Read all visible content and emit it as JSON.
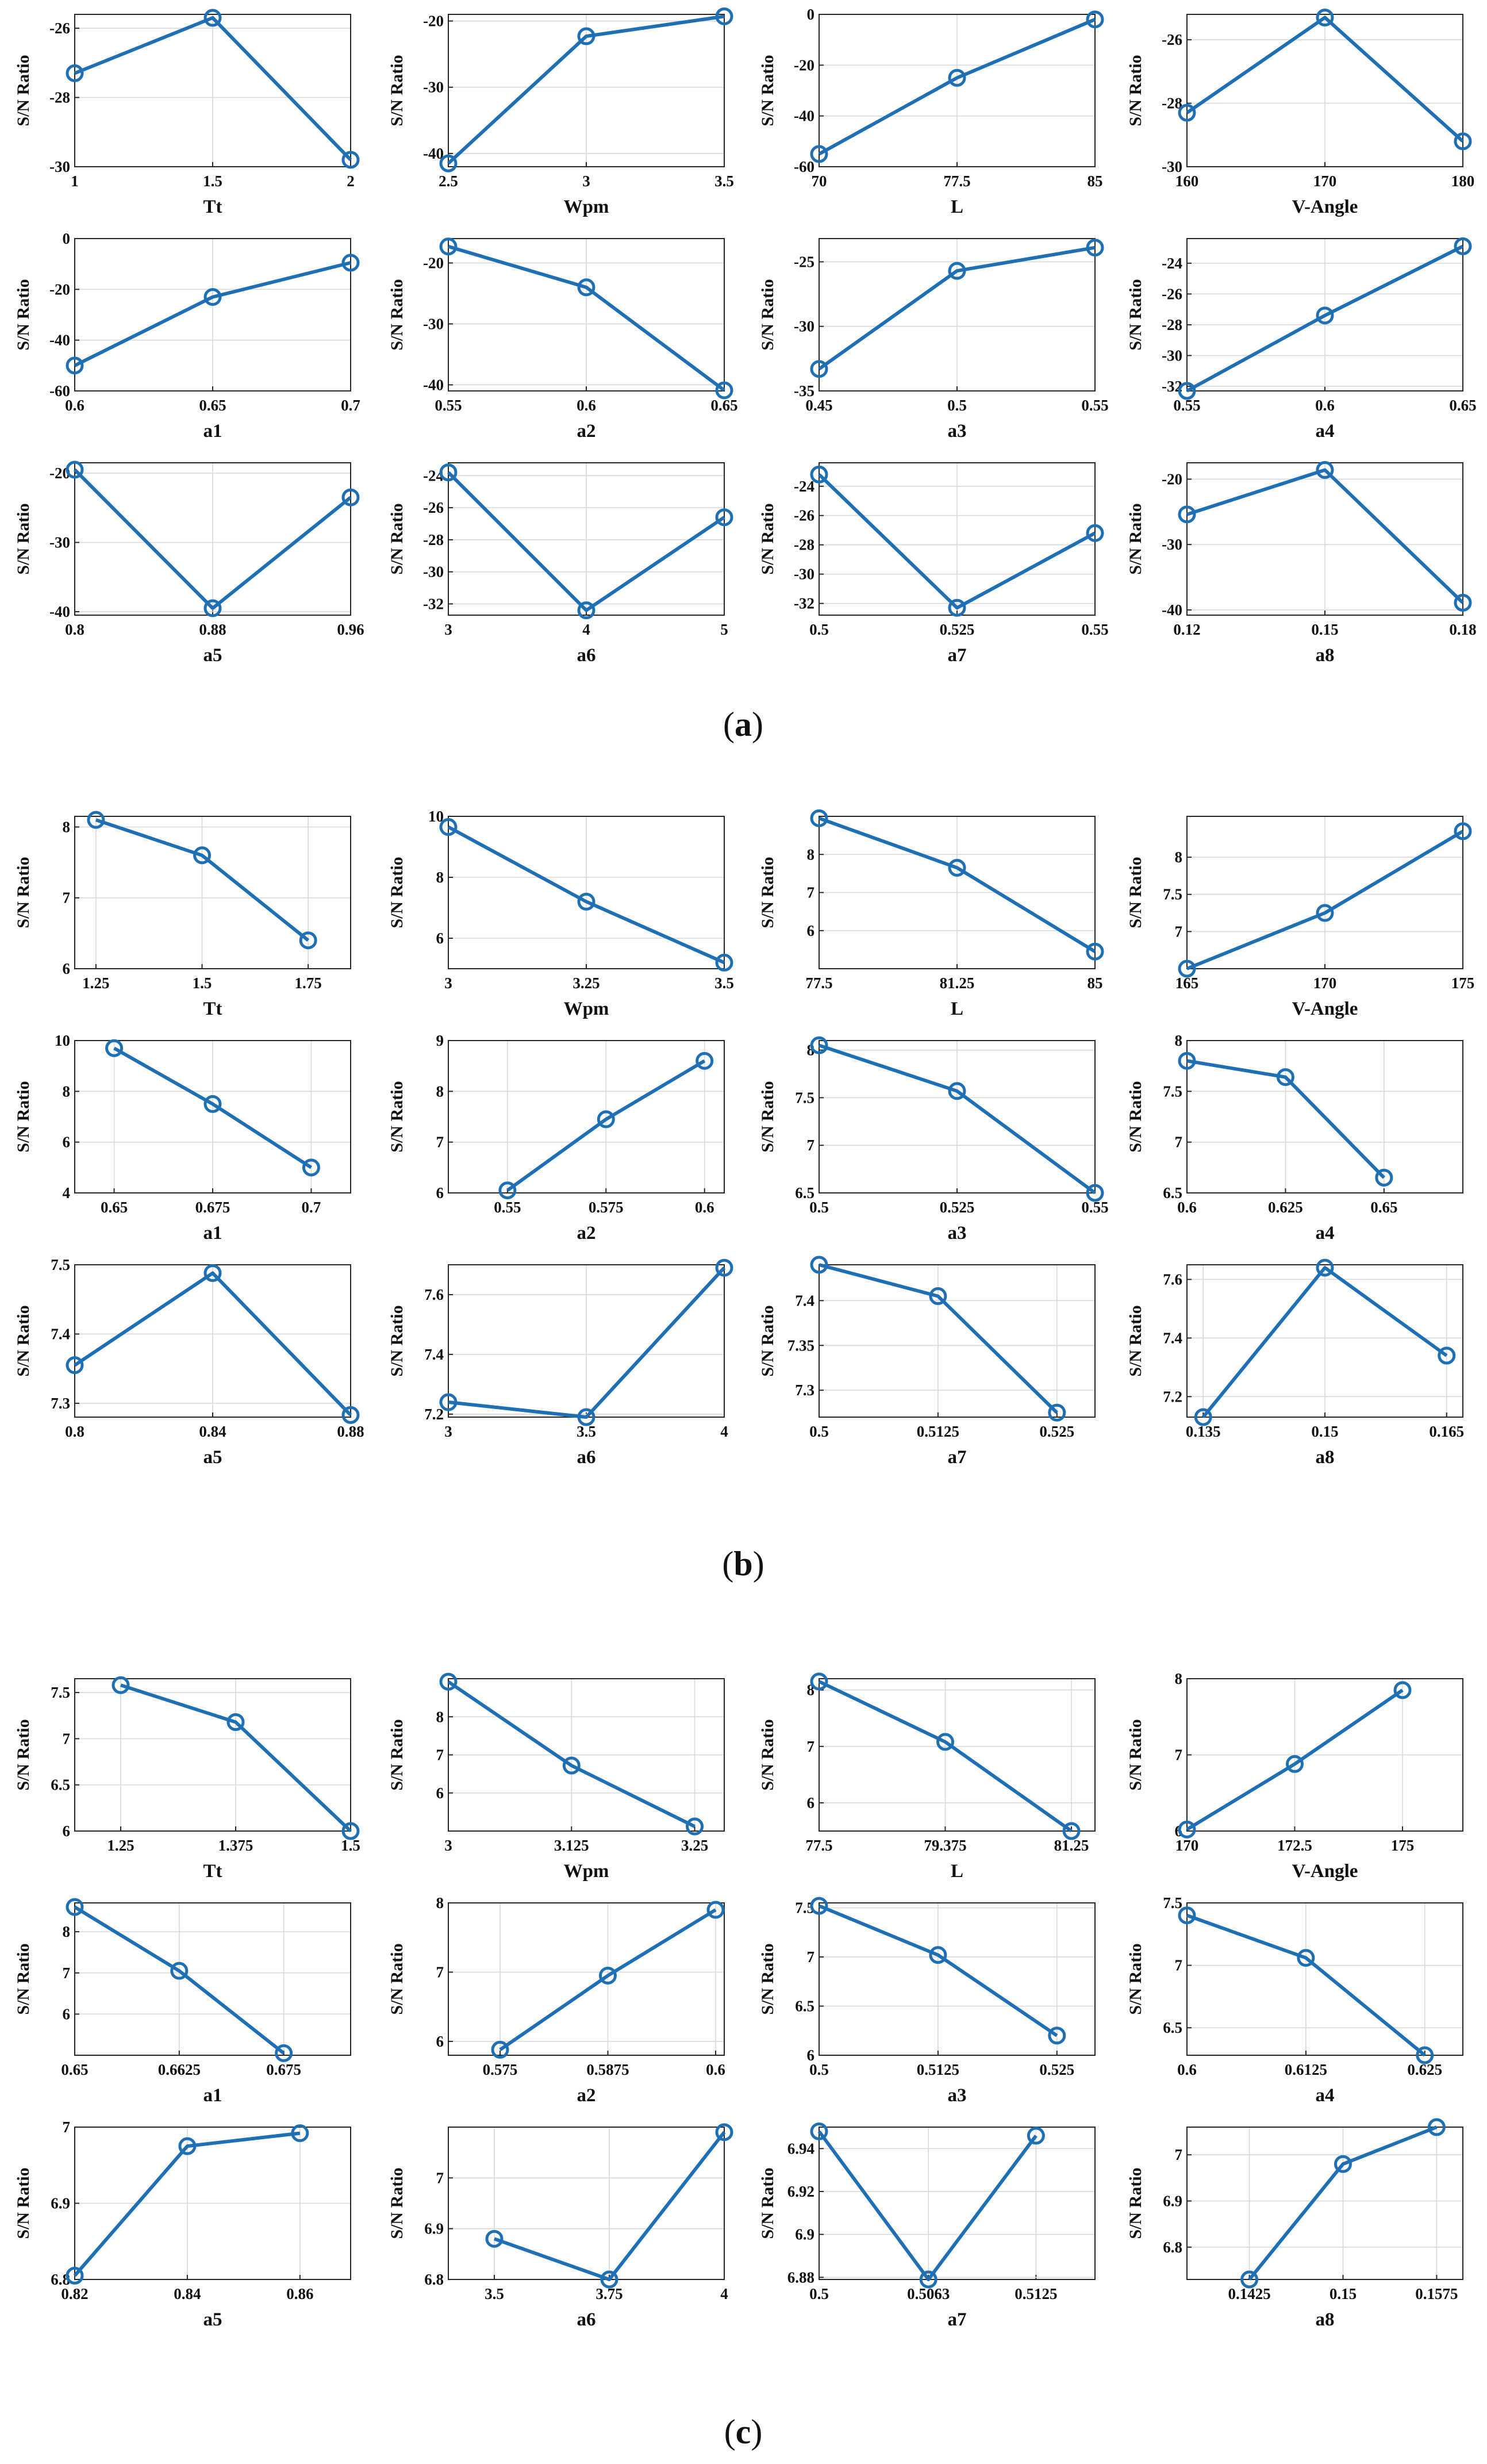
{
  "y_axis_label": "S/N Ratio",
  "colors": {
    "series": "#1f6fb4",
    "grid": "#d9d9d9",
    "axis": "#262626"
  },
  "captions": [
    {
      "open": "(",
      "letter": "a",
      "close": ")"
    },
    {
      "open": "(",
      "letter": "b",
      "close": ")"
    },
    {
      "open": "(",
      "letter": "c",
      "close": ")"
    }
  ],
  "chart_data": [
    {
      "type": "line",
      "xlabel": "Tt",
      "ylabel": "S/N Ratio",
      "x": [
        1,
        1.5,
        2
      ],
      "xticks": [
        "1",
        "1.5",
        "2"
      ],
      "values": [
        -27.3,
        -25.7,
        -29.8
      ],
      "ylim": [
        -30,
        -25.6
      ],
      "yticks": [
        -26,
        -28,
        -30
      ]
    },
    {
      "type": "line",
      "xlabel": "Wpm",
      "ylabel": "S/N Ratio",
      "x": [
        2.5,
        3,
        3.5
      ],
      "xticks": [
        "2.5",
        "3",
        "3.5"
      ],
      "values": [
        -41.5,
        -22.3,
        -19.3
      ],
      "ylim": [
        -42,
        -19
      ],
      "yticks": [
        -20,
        -30,
        -40
      ]
    },
    {
      "type": "line",
      "xlabel": "L",
      "ylabel": "S/N Ratio",
      "x": [
        70,
        77.5,
        85
      ],
      "xticks": [
        "70",
        "77.5",
        "85"
      ],
      "values": [
        -55,
        -25,
        -2
      ],
      "ylim": [
        -60,
        0
      ],
      "yticks": [
        0,
        -20,
        -40,
        -60
      ]
    },
    {
      "type": "line",
      "xlabel": "V-Angle",
      "ylabel": "S/N Ratio",
      "x": [
        160,
        170,
        180
      ],
      "xticks": [
        "160",
        "170",
        "180"
      ],
      "values": [
        -28.3,
        -25.3,
        -29.2
      ],
      "ylim": [
        -30,
        -25.2
      ],
      "yticks": [
        -26,
        -28,
        -30
      ]
    },
    {
      "type": "line",
      "xlabel": "a1",
      "ylabel": "S/N Ratio",
      "x": [
        0.6,
        0.65,
        0.7
      ],
      "xticks": [
        "0.6",
        "0.65",
        "0.7"
      ],
      "values": [
        -50,
        -23,
        -9.5
      ],
      "ylim": [
        -60,
        0
      ],
      "yticks": [
        0,
        -20,
        -40,
        -60
      ]
    },
    {
      "type": "line",
      "xlabel": "a2",
      "ylabel": "S/N Ratio",
      "x": [
        0.55,
        0.6,
        0.65
      ],
      "xticks": [
        "0.55",
        "0.6",
        "0.65"
      ],
      "values": [
        -17.3,
        -24,
        -40.9
      ],
      "ylim": [
        -41,
        -16
      ],
      "yticks": [
        -20,
        -30,
        -40
      ]
    },
    {
      "type": "line",
      "xlabel": "a3",
      "ylabel": "S/N Ratio",
      "x": [
        0.45,
        0.5,
        0.55
      ],
      "xticks": [
        "0.45",
        "0.5",
        "0.55"
      ],
      "values": [
        -33.3,
        -25.7,
        -23.9
      ],
      "ylim": [
        -35,
        -23.2
      ],
      "yticks": [
        -25,
        -30,
        -35
      ]
    },
    {
      "type": "line",
      "xlabel": "a4",
      "ylabel": "S/N Ratio",
      "x": [
        0.55,
        0.6,
        0.65
      ],
      "xticks": [
        "0.55",
        "0.6",
        "0.65"
      ],
      "values": [
        -32.3,
        -27.4,
        -22.9
      ],
      "ylim": [
        -32.3,
        -22.4
      ],
      "yticks": [
        -24,
        -26,
        -28,
        -30,
        -32
      ]
    },
    {
      "type": "line",
      "xlabel": "a5",
      "ylabel": "S/N Ratio",
      "x": [
        0.8,
        0.88,
        0.96
      ],
      "xticks": [
        "0.8",
        "0.88",
        "0.96"
      ],
      "values": [
        -19.5,
        -39.5,
        -23.5
      ],
      "ylim": [
        -40.5,
        -18.5
      ],
      "yticks": [
        -20,
        -30,
        -40
      ]
    },
    {
      "type": "line",
      "xlabel": "a6",
      "ylabel": "S/N Ratio",
      "x": [
        3,
        4,
        5
      ],
      "xticks": [
        "3",
        "4",
        "5"
      ],
      "values": [
        -23.8,
        -32.4,
        -26.6
      ],
      "ylim": [
        -32.7,
        -23.2
      ],
      "yticks": [
        -24,
        -26,
        -28,
        -30,
        -32
      ]
    },
    {
      "type": "line",
      "xlabel": "a7",
      "ylabel": "S/N Ratio",
      "x": [
        0.5,
        0.525,
        0.55
      ],
      "xticks": [
        "0.5",
        "0.525",
        "0.55"
      ],
      "values": [
        -23.2,
        -32.3,
        -27.2
      ],
      "ylim": [
        -32.8,
        -22.4
      ],
      "yticks": [
        -24,
        -26,
        -28,
        -30,
        -32
      ]
    },
    {
      "type": "line",
      "xlabel": "a8",
      "ylabel": "S/N Ratio",
      "x": [
        0.12,
        0.15,
        0.18
      ],
      "xticks": [
        "0.12",
        "0.15",
        "0.18"
      ],
      "values": [
        -25.4,
        -18.6,
        -38.9
      ],
      "ylim": [
        -40.8,
        -17.5
      ],
      "yticks": [
        -20,
        -30,
        -40
      ]
    },
    {
      "type": "line",
      "xlabel": "Tt",
      "ylabel": "S/N Ratio",
      "x": [
        1.25,
        1.5,
        1.75
      ],
      "xticks": [
        "1.25",
        "1.5",
        "1.75"
      ],
      "values": [
        8.1,
        7.6,
        6.4
      ],
      "xlim": [
        1.2,
        1.85
      ],
      "ylim": [
        6,
        8.15
      ],
      "yticks": [
        6,
        7,
        8
      ]
    },
    {
      "type": "line",
      "xlabel": "Wpm",
      "ylabel": "S/N Ratio",
      "x": [
        3,
        3.25,
        3.5
      ],
      "xticks": [
        "3",
        "3.25",
        "3.5"
      ],
      "values": [
        9.65,
        7.2,
        5.2
      ],
      "ylim": [
        5,
        10
      ],
      "yticks": [
        6,
        8,
        10
      ]
    },
    {
      "type": "line",
      "xlabel": "L",
      "ylabel": "S/N Ratio",
      "x": [
        77.5,
        81.25,
        85
      ],
      "xticks": [
        "77.5",
        "81.25",
        "85"
      ],
      "values": [
        8.95,
        7.65,
        5.45
      ],
      "ylim": [
        5,
        9
      ],
      "yticks": [
        6,
        7,
        8
      ]
    },
    {
      "type": "line",
      "xlabel": "V-Angle",
      "ylabel": "S/N Ratio",
      "x": [
        165,
        170,
        175
      ],
      "xticks": [
        "165",
        "170",
        "175"
      ],
      "values": [
        6.5,
        7.25,
        8.35
      ],
      "ylim": [
        6.5,
        8.55
      ],
      "yticks": [
        7,
        7.5,
        8
      ]
    },
    {
      "type": "line",
      "xlabel": "a1",
      "ylabel": "S/N Ratio",
      "x": [
        0.65,
        0.675,
        0.7
      ],
      "xticks": [
        "0.65",
        "0.675",
        "0.7"
      ],
      "values": [
        9.7,
        7.5,
        5
      ],
      "xlim": [
        0.64,
        0.71
      ],
      "ylim": [
        4,
        10
      ],
      "yticks": [
        4,
        6,
        8,
        10
      ]
    },
    {
      "type": "line",
      "xlabel": "a2",
      "ylabel": "S/N Ratio",
      "x": [
        0.55,
        0.575,
        0.6
      ],
      "xticks": [
        "0.55",
        "0.575",
        "0.6"
      ],
      "values": [
        6.05,
        7.45,
        8.6
      ],
      "xlim": [
        0.535,
        0.605
      ],
      "ylim": [
        6,
        9
      ],
      "yticks": [
        6,
        7,
        8,
        9
      ]
    },
    {
      "type": "line",
      "xlabel": "a3",
      "ylabel": "S/N Ratio",
      "x": [
        0.5,
        0.525,
        0.55
      ],
      "xticks": [
        "0.5",
        "0.525",
        "0.55"
      ],
      "values": [
        8.05,
        7.57,
        6.5
      ],
      "ylim": [
        6.5,
        8.1
      ],
      "yticks": [
        6.5,
        7,
        7.5,
        8
      ]
    },
    {
      "type": "line",
      "xlabel": "a4",
      "ylabel": "S/N Ratio",
      "x": [
        0.6,
        0.625,
        0.65
      ],
      "xticks": [
        "0.6",
        "0.625",
        "0.65"
      ],
      "values": [
        7.8,
        7.64,
        6.65
      ],
      "xlim": [
        0.6,
        0.67
      ],
      "ylim": [
        6.5,
        8
      ],
      "yticks": [
        6.5,
        7,
        7.5,
        8
      ]
    },
    {
      "type": "line",
      "xlabel": "a5",
      "ylabel": "S/N Ratio",
      "x": [
        0.8,
        0.84,
        0.88
      ],
      "xticks": [
        "0.8",
        "0.84",
        "0.88"
      ],
      "values": [
        7.355,
        7.488,
        7.283
      ],
      "ylim": [
        7.28,
        7.5
      ],
      "yticks": [
        7.3,
        7.4,
        7.5
      ]
    },
    {
      "type": "line",
      "xlabel": "a6",
      "ylabel": "S/N Ratio",
      "x": [
        3,
        3.5,
        4
      ],
      "xticks": [
        "3",
        "3.5",
        "4"
      ],
      "values": [
        7.24,
        7.19,
        7.69
      ],
      "ylim": [
        7.19,
        7.7
      ],
      "yticks": [
        7.2,
        7.4,
        7.6
      ]
    },
    {
      "type": "line",
      "xlabel": "a7",
      "ylabel": "S/N Ratio",
      "x": [
        0.5,
        0.5125,
        0.525
      ],
      "xticks": [
        "0.5",
        "0.5125",
        "0.525"
      ],
      "values": [
        7.44,
        7.405,
        7.275
      ],
      "xlim": [
        0.5,
        0.529
      ],
      "ylim": [
        7.27,
        7.44
      ],
      "yticks": [
        7.3,
        7.35,
        7.4
      ]
    },
    {
      "type": "line",
      "xlabel": "a8",
      "ylabel": "S/N Ratio",
      "x": [
        0.135,
        0.15,
        0.165
      ],
      "xticks": [
        "0.135",
        "0.15",
        "0.165"
      ],
      "values": [
        7.13,
        7.64,
        7.34
      ],
      "xlim": [
        0.133,
        0.167
      ],
      "ylim": [
        7.13,
        7.65
      ],
      "yticks": [
        7.2,
        7.4,
        7.6
      ]
    },
    {
      "type": "line",
      "xlabel": "Tt",
      "ylabel": "S/N Ratio",
      "x": [
        1.25,
        1.375,
        1.5
      ],
      "xticks": [
        "1.25",
        "1.375",
        "1.5"
      ],
      "values": [
        7.58,
        7.18,
        6
      ],
      "xlim": [
        1.2,
        1.5
      ],
      "ylim": [
        6,
        7.65
      ],
      "yticks": [
        6,
        6.5,
        7,
        7.5
      ]
    },
    {
      "type": "line",
      "xlabel": "Wpm",
      "ylabel": "S/N Ratio",
      "x": [
        3,
        3.125,
        3.25
      ],
      "xticks": [
        "3",
        "3.125",
        "3.25"
      ],
      "values": [
        8.92,
        6.72,
        5.12
      ],
      "xlim": [
        3,
        3.28
      ],
      "ylim": [
        5,
        9
      ],
      "yticks": [
        6,
        7,
        8
      ]
    },
    {
      "type": "line",
      "xlabel": "L",
      "ylabel": "S/N Ratio",
      "x": [
        77.5,
        79.375,
        81.25
      ],
      "xticks": [
        "77.5",
        "79.375",
        "81.25"
      ],
      "values": [
        8.15,
        7.08,
        5.5
      ],
      "xlim": [
        77.5,
        81.6
      ],
      "ylim": [
        5.5,
        8.2
      ],
      "yticks": [
        6,
        7,
        8
      ]
    },
    {
      "type": "line",
      "xlabel": "V-Angle",
      "ylabel": "S/N Ratio",
      "x": [
        170,
        172.5,
        175
      ],
      "xticks": [
        "170",
        "172.5",
        "175"
      ],
      "values": [
        6.02,
        6.88,
        7.85
      ],
      "xlim": [
        170,
        176.4
      ],
      "ylim": [
        6,
        8
      ],
      "yticks": [
        6,
        7,
        8
      ]
    },
    {
      "type": "line",
      "xlabel": "a1",
      "ylabel": "S/N Ratio",
      "x": [
        0.65,
        0.6625,
        0.675
      ],
      "xticks": [
        "0.65",
        "0.6625",
        "0.675"
      ],
      "values": [
        8.6,
        7.05,
        5.05
      ],
      "xlim": [
        0.65,
        0.683
      ],
      "ylim": [
        5,
        8.7
      ],
      "yticks": [
        6,
        7,
        8
      ]
    },
    {
      "type": "line",
      "xlabel": "a2",
      "ylabel": "S/N Ratio",
      "x": [
        0.575,
        0.5875,
        0.6
      ],
      "xticks": [
        "0.575",
        "0.5875",
        "0.6"
      ],
      "values": [
        5.88,
        6.95,
        7.9
      ],
      "xlim": [
        0.569,
        0.601
      ],
      "ylim": [
        5.8,
        8
      ],
      "yticks": [
        6,
        7,
        8
      ]
    },
    {
      "type": "line",
      "xlabel": "a3",
      "ylabel": "S/N Ratio",
      "x": [
        0.5,
        0.5125,
        0.525
      ],
      "xticks": [
        "0.5",
        "0.5125",
        "0.525"
      ],
      "values": [
        7.52,
        7.02,
        6.2
      ],
      "xlim": [
        0.5,
        0.529
      ],
      "ylim": [
        6,
        7.55
      ],
      "yticks": [
        6,
        6.5,
        7,
        7.5
      ]
    },
    {
      "type": "line",
      "xlabel": "a4",
      "ylabel": "S/N Ratio",
      "x": [
        0.6,
        0.6125,
        0.625
      ],
      "xticks": [
        "0.6",
        "0.6125",
        "0.625"
      ],
      "values": [
        7.4,
        7.06,
        6.28
      ],
      "xlim": [
        0.6,
        0.629
      ],
      "ylim": [
        6.28,
        7.5
      ],
      "yticks": [
        6.5,
        7,
        7.5
      ]
    },
    {
      "type": "line",
      "xlabel": "a5",
      "ylabel": "S/N Ratio",
      "x": [
        0.82,
        0.84,
        0.86
      ],
      "xticks": [
        "0.82",
        "0.84",
        "0.86"
      ],
      "values": [
        6.805,
        6.975,
        6.992
      ],
      "xlim": [
        0.82,
        0.869
      ],
      "ylim": [
        6.8,
        7
      ],
      "yticks": [
        6.8,
        6.9,
        7
      ]
    },
    {
      "type": "line",
      "xlabel": "a6",
      "ylabel": "S/N Ratio",
      "x": [
        3.5,
        3.75,
        4
      ],
      "xticks": [
        "3.5",
        "3.75",
        "4"
      ],
      "values": [
        6.88,
        6.8,
        7.09
      ],
      "xlim": [
        3.4,
        4
      ],
      "ylim": [
        6.8,
        7.1
      ],
      "yticks": [
        6.8,
        6.9,
        7
      ]
    },
    {
      "type": "line",
      "xlabel": "a7",
      "ylabel": "S/N Ratio",
      "x": [
        0.5,
        0.5063,
        0.5125
      ],
      "xticks": [
        "0.5",
        "0.5063",
        "0.5125"
      ],
      "values": [
        6.948,
        6.879,
        6.946
      ],
      "xlim": [
        0.5,
        0.5159
      ],
      "ylim": [
        6.879,
        6.95
      ],
      "yticks": [
        6.88,
        6.9,
        6.92,
        6.94
      ]
    },
    {
      "type": "line",
      "xlabel": "a8",
      "ylabel": "S/N Ratio",
      "x": [
        0.1425,
        0.15,
        0.1575
      ],
      "xticks": [
        "0.1425",
        "0.15",
        "0.1575"
      ],
      "values": [
        6.73,
        6.98,
        7.06
      ],
      "xlim": [
        0.1375,
        0.1596
      ],
      "ylim": [
        6.73,
        7.06
      ],
      "yticks": [
        6.8,
        6.9,
        7
      ]
    }
  ]
}
